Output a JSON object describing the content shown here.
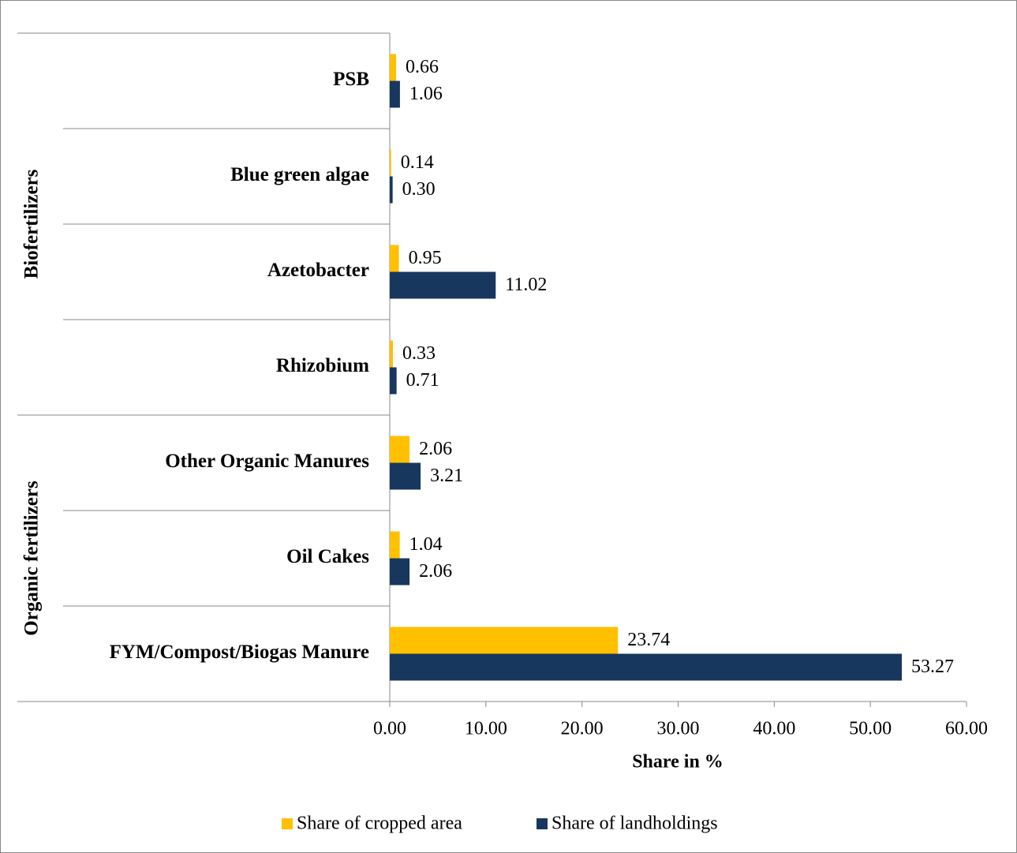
{
  "chart_data": {
    "type": "bar",
    "orientation": "horizontal",
    "xlabel": "Share in %",
    "categories": [
      "PSB",
      "Blue green algae",
      "Azetobacter",
      "Rhizobium",
      "Other Organic Manures",
      "Oil Cakes",
      "FYM/Compost/Biogas Manure"
    ],
    "groups": [
      {
        "label": "Biofertilizers",
        "size": 4
      },
      {
        "label": "Organic fertilizers",
        "size": 3
      }
    ],
    "series": [
      {
        "name": "Share of cropped area",
        "color": "#FFC000",
        "values": [
          0.66,
          0.14,
          0.95,
          0.33,
          2.06,
          1.04,
          23.74
        ],
        "value_labels": [
          "0.66",
          "0.14",
          "0.95",
          "0.33",
          "2.06",
          "1.04",
          "23.74"
        ]
      },
      {
        "name": "Share of landholdings",
        "color": "#17375E",
        "values": [
          1.06,
          0.3,
          11.02,
          0.71,
          3.21,
          2.06,
          53.27
        ],
        "value_labels": [
          "1.06",
          "0.30",
          "11.02",
          "0.71",
          "3.21",
          "2.06",
          "53.27"
        ]
      }
    ],
    "xlim": [
      0,
      60
    ],
    "xticks": [
      {
        "value": 0,
        "label": "0.00"
      },
      {
        "value": 10,
        "label": "10.00"
      },
      {
        "value": 20,
        "label": "20.00"
      },
      {
        "value": 30,
        "label": "30.00"
      },
      {
        "value": 40,
        "label": "40.00"
      },
      {
        "value": 50,
        "label": "50.00"
      },
      {
        "value": 60,
        "label": "60.00"
      }
    ],
    "legend": "bottom"
  }
}
